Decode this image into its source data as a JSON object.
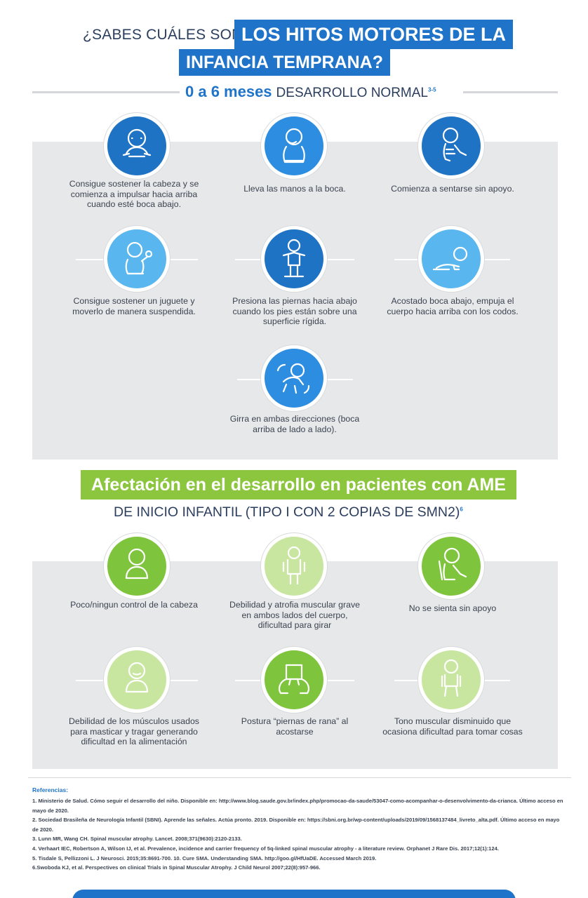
{
  "header": {
    "question_prefix": "¿SABES CUÁLES SON",
    "highlight_line1": "LOS HITOS MOTORES DE LA",
    "highlight_line2": "INFANCIA TEMPRANA?"
  },
  "section1": {
    "age_range": "0 a 6 meses",
    "label": "DESARROLLO NORMAL",
    "ref": "3-5",
    "milestones": [
      {
        "icon": "baby-head-control-icon",
        "text": "Consigue sostener la cabeza y se comienza a impulsar hacia arriba cuando esté boca abajo."
      },
      {
        "icon": "baby-hands-to-mouth-icon",
        "text": "Lleva las manos a la boca."
      },
      {
        "icon": "baby-sitting-icon",
        "text": "Comienza a sentarse sin apoyo."
      },
      {
        "icon": "baby-holding-toy-icon",
        "text": "Consigue sostener un juguete y moverlo de manera suspendida."
      },
      {
        "icon": "baby-standing-icon",
        "text": "Presiona las piernas hacia abajo cuando los pies están sobre una superficie rígida."
      },
      {
        "icon": "baby-prone-icon",
        "text": "Acostado boca abajo, empuja el cuerpo hacia arriba con los codos."
      },
      {
        "icon": "baby-rolling-icon",
        "text": "Girra en ambas direcciones (boca arriba de lado a lado)."
      }
    ]
  },
  "section2": {
    "title": "Afectación en el desarrollo en pacientes con AME",
    "subtitle": "DE INICIO INFANTIL (TIPO I CON 2 COPIAS DE SMN2)",
    "ref": "6",
    "items": [
      {
        "icon": "baby-head-icon",
        "text": "Poco/ningun control de la cabeza"
      },
      {
        "icon": "baby-weak-icon",
        "text": "Debilidad y atrofia muscular grave en ambos lados del cuerpo, dificultad para girar"
      },
      {
        "icon": "baby-not-sitting-icon",
        "text": "No se sienta sin apoyo"
      },
      {
        "icon": "baby-feeding-icon",
        "text": "Debilidad de los músculos usados para masticar y tragar generando dificultad en la alimentación"
      },
      {
        "icon": "frog-legs-icon",
        "text": "Postura “piernas de rana” al acostarse"
      },
      {
        "icon": "baby-low-tone-icon",
        "text": "Tono muscular disminuido que ocasiona dificultad para tomar cosas"
      }
    ]
  },
  "references": {
    "title": "Referencias:",
    "items": [
      "1. Ministerio de Salud. Cómo seguir el desarrollo del niño. Disponible en: http://www.blog.saude.gov.br/index.php/promocao-da-saude/53047-como-acompanhar-o-desenvolvimento-da-crianca. Último acceso en mayo de 2020.",
      "2. Sociedad Brasileña de Neurología Infantil (SBNI). Aprende las señales. Actúa pronto. 2019. Disponible en: https://sbni.org.br/wp-content/uploads/2019/09/1568137484_livreto_alta.pdf. Último acceso en mayo de 2020.",
      "3. Lunn MR, Wang CH. Spinal muscular atrophy. Lancet. 2008;371(9630):2120-2133.",
      "4. Verhaart IEC, Robertson A, Wilson IJ, et al. Prevalence, incidence and carrier frequency of 5q-linked spinal muscular atrophy - a literature review. Orphanet J Rare Dis. 2017;12(1):124.",
      "5. Tisdale S, Pellizzoni L. J Neurosci. 2015;35:8691-700. 10. Cure SMA. Understanding SMA. http://goo.gl/HfUaDE. Accessed March 2019.",
      "6.Swoboda KJ, et al. Perspectives on clinical Trials in Spinal Muscular Atrophy. J Child Neurol 2007;22(8):957-966."
    ]
  },
  "colors": {
    "brand_blue": "#1f74c9",
    "brand_green": "#8cc63f",
    "panel_gray": "#e7e8ea"
  }
}
